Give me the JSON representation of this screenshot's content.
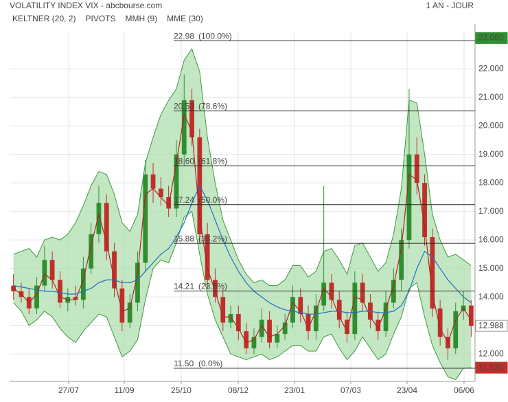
{
  "chart_data": {
    "type": "candlestick",
    "title": "VOLATILITY INDEX VIX - abcbourse.com",
    "period": "1 AN - JOUR",
    "xlim": [
      -0.5,
      59.5
    ],
    "ylim": [
      11.04,
      23.33
    ],
    "xticks": [
      {
        "value": 7.11,
        "label": "27/07"
      },
      {
        "value": 14.28,
        "label": "11/09"
      },
      {
        "value": 21.62,
        "label": "25/10"
      },
      {
        "value": 28.97,
        "label": "08/12"
      },
      {
        "value": 36.23,
        "label": "23/01"
      },
      {
        "value": 43.48,
        "label": "07/03"
      },
      {
        "value": 50.74,
        "label": "23/04"
      },
      {
        "value": 58.08,
        "label": "06/06"
      }
    ],
    "yticks": [
      {
        "value": 12,
        "label": "12.000"
      },
      {
        "value": 13,
        "label": "13.000"
      },
      {
        "value": 14,
        "label": "14.000"
      },
      {
        "value": 15,
        "label": "15.000"
      },
      {
        "value": 16,
        "label": "16.000"
      },
      {
        "value": 17,
        "label": "17.000"
      },
      {
        "value": 18,
        "label": "18.000"
      },
      {
        "value": 19,
        "label": "19.000"
      },
      {
        "value": 20,
        "label": "20.000"
      },
      {
        "value": 21,
        "label": "21.000"
      },
      {
        "value": 22,
        "label": "22.000"
      }
    ],
    "grid": true,
    "up_color": "#2f8f2f",
    "down_color": "#c0302a",
    "x": [
      0,
      1,
      2,
      3,
      4,
      5,
      6,
      7,
      8,
      9,
      10,
      11,
      12,
      13,
      14,
      15,
      16,
      17,
      18,
      19,
      20,
      21,
      22,
      23,
      24,
      25,
      26,
      27,
      28,
      29,
      30,
      31,
      32,
      33,
      34,
      35,
      36,
      37,
      38,
      39,
      40,
      41,
      42,
      43,
      44,
      45,
      46,
      47,
      48,
      49,
      50,
      51,
      52,
      53,
      54,
      55,
      56,
      57,
      58,
      59
    ],
    "opens": [
      14.4,
      14.2,
      14.0,
      13.6,
      14.4,
      15.3,
      14.6,
      13.8,
      14.0,
      13.9,
      15.0,
      16.2,
      17.3,
      15.6,
      14.3,
      13.1,
      13.8,
      15.2,
      18.3,
      17.8,
      17.5,
      17.1,
      19.0,
      20.9,
      19.6,
      16.2,
      14.6,
      14.0,
      13.1,
      13.4,
      12.8,
      12.2,
      12.6,
      13.2,
      12.4,
      12.7,
      13.1,
      14.0,
      13.4,
      12.8,
      13.7,
      14.5,
      13.9,
      13.2,
      12.7,
      14.5,
      13.8,
      13.2,
      12.8,
      13.8,
      14.6,
      16.0,
      19.0,
      18.0,
      16.1,
      13.6,
      12.6,
      12.2,
      13.5,
      13.7
    ],
    "highs": [
      14.8,
      14.5,
      14.3,
      14.7,
      15.8,
      15.6,
      14.9,
      14.3,
      14.4,
      15.4,
      16.6,
      17.9,
      17.6,
      15.9,
      14.6,
      14.1,
      15.6,
      18.8,
      18.7,
      18.2,
      17.9,
      19.5,
      21.8,
      21.3,
      19.9,
      16.6,
      15.0,
      14.3,
      13.7,
      13.7,
      13.1,
      12.9,
      13.6,
      13.5,
      13.0,
      13.4,
      14.4,
      14.3,
      13.7,
      14.1,
      17.9,
      14.8,
      14.2,
      13.5,
      14.9,
      14.8,
      14.1,
      13.5,
      14.2,
      15.0,
      16.4,
      21.3,
      19.6,
      18.3,
      16.4,
      13.9,
      12.9,
      13.8,
      14.2,
      13.9
    ],
    "lows": [
      13.9,
      13.8,
      13.4,
      13.4,
      14.2,
      14.3,
      13.6,
      13.5,
      13.7,
      13.6,
      14.8,
      15.9,
      15.3,
      14.0,
      12.8,
      12.9,
      13.5,
      14.9,
      17.3,
      17.2,
      16.8,
      16.8,
      18.6,
      19.3,
      15.9,
      14.3,
      13.8,
      12.8,
      12.9,
      12.5,
      12.0,
      12.0,
      12.4,
      12.2,
      12.2,
      12.5,
      12.9,
      13.1,
      12.5,
      12.5,
      13.5,
      13.6,
      12.9,
      12.4,
      12.5,
      13.5,
      12.9,
      12.5,
      12.6,
      13.6,
      14.2,
      15.7,
      17.6,
      15.8,
      13.3,
      12.3,
      11.8,
      12.0,
      13.2,
      12.6
    ],
    "closes": [
      14.2,
      14.0,
      13.6,
      14.4,
      15.3,
      14.6,
      13.8,
      14.0,
      13.9,
      15.0,
      16.2,
      17.3,
      15.6,
      14.3,
      13.1,
      13.8,
      15.2,
      18.3,
      17.8,
      17.5,
      17.1,
      19.0,
      20.9,
      19.6,
      16.2,
      14.6,
      14.0,
      13.1,
      13.4,
      12.8,
      12.2,
      12.6,
      13.2,
      12.4,
      12.7,
      13.1,
      14.0,
      13.4,
      12.8,
      13.7,
      14.5,
      13.9,
      13.2,
      12.7,
      14.5,
      13.8,
      13.2,
      12.8,
      13.8,
      14.6,
      16.0,
      19.0,
      18.0,
      16.1,
      13.6,
      12.6,
      12.2,
      13.5,
      13.7,
      12.99
    ],
    "keltner": {
      "name": "KELTNER (20, 2)",
      "color": "#3c9a3c",
      "fill": "#a9dca9",
      "upper": [
        15.5,
        15.6,
        15.7,
        15.4,
        16.0,
        16.1,
        16.0,
        16.2,
        16.6,
        17.2,
        17.9,
        18.4,
        18.3,
        17.6,
        16.6,
        16.3,
        16.9,
        18.7,
        19.6,
        20.4,
        20.9,
        21.3,
        22.3,
        22.7,
        21.9,
        19.6,
        18.0,
        16.7,
        16.0,
        15.3,
        14.8,
        14.5,
        14.6,
        14.4,
        14.4,
        14.6,
        15.1,
        15.1,
        14.7,
        14.9,
        15.6,
        15.7,
        15.3,
        14.8,
        15.8,
        15.9,
        15.4,
        14.9,
        15.2,
        16.2,
        17.8,
        20.9,
        20.8,
        19.0,
        16.9,
        16.0,
        15.4,
        15.5,
        15.3,
        15.1
      ],
      "lower": [
        13.8,
        13.5,
        13.0,
        13.2,
        13.5,
        13.3,
        12.9,
        12.6,
        12.4,
        12.8,
        13.1,
        13.4,
        13.3,
        12.6,
        11.9,
        12.1,
        12.5,
        13.9,
        15.0,
        15.3,
        15.2,
        15.9,
        16.8,
        17.0,
        15.5,
        14.1,
        13.2,
        12.6,
        12.0,
        11.9,
        11.8,
        11.9,
        12.0,
        11.8,
        11.9,
        12.1,
        12.3,
        12.3,
        12.1,
        12.1,
        12.6,
        12.7,
        12.2,
        11.8,
        12.1,
        12.6,
        12.2,
        11.8,
        12.0,
        12.7,
        13.3,
        14.3,
        14.5,
        13.3,
        12.3,
        11.7,
        11.2,
        11.1,
        11.5,
        11.52
      ]
    },
    "pivots": {
      "name": "PIVOTS",
      "color": "#333333",
      "levels": [
        {
          "value": 22.98,
          "pct": "(100.0%)"
        },
        {
          "value": 20.53,
          "pct": "(78.6%)"
        },
        {
          "value": 18.6,
          "label": "18.60",
          "pct": "(61.8%)"
        },
        {
          "value": 17.24,
          "pct": "(50.0%)"
        },
        {
          "value": 15.88,
          "pct": "(38.2%)"
        },
        {
          "value": 14.21,
          "pct": "(23.6%)"
        },
        {
          "value": 11.5,
          "label": "11.50",
          "pct": "(0.0%)"
        }
      ]
    },
    "mmh": {
      "name": "MMH (9)",
      "color": "#b22222",
      "values": [
        14.3,
        14.1,
        13.8,
        14.1,
        14.8,
        14.6,
        14.0,
        13.9,
        13.9,
        14.6,
        15.8,
        16.9,
        15.9,
        14.6,
        13.5,
        13.6,
        14.8,
        17.6,
        17.8,
        17.5,
        17.2,
        18.7,
        20.4,
        19.8,
        16.8,
        15.0,
        14.2,
        13.3,
        13.3,
        12.9,
        12.4,
        12.5,
        13.0,
        12.6,
        12.7,
        13.0,
        13.8,
        13.5,
        12.9,
        13.5,
        14.3,
        14.0,
        13.3,
        12.8,
        14.0,
        13.9,
        13.3,
        12.9,
        13.6,
        14.4,
        15.7,
        18.3,
        18.1,
        16.5,
        14.1,
        12.9,
        12.4,
        13.2,
        13.6,
        13.2
      ]
    },
    "mme": {
      "name": "MME (30)",
      "color": "#1f6fc4",
      "values": [
        14.4,
        14.35,
        14.3,
        14.25,
        14.2,
        14.2,
        14.15,
        14.1,
        14.1,
        14.2,
        14.3,
        14.5,
        14.6,
        14.6,
        14.5,
        14.5,
        14.6,
        14.9,
        15.2,
        15.5,
        15.7,
        16.1,
        16.6,
        17.3,
        17.9,
        17.4,
        16.7,
        16.0,
        15.4,
        14.9,
        14.5,
        14.2,
        14.0,
        13.8,
        13.65,
        13.55,
        13.5,
        13.45,
        13.4,
        13.4,
        13.45,
        13.5,
        13.5,
        13.45,
        13.45,
        13.5,
        13.5,
        13.45,
        13.45,
        13.5,
        13.7,
        14.2,
        15.0,
        15.6,
        15.4,
        15.0,
        14.6,
        14.3,
        14.0,
        13.8
      ]
    },
    "price_tags": [
      {
        "value": 23.08,
        "label": "23.080",
        "color": "#2f8f2f",
        "text_color": "#ffffff"
      },
      {
        "value": 12.988,
        "label": "12.988",
        "color": "#ffffff",
        "text_color": "#333333"
      },
      {
        "value": 11.52,
        "label": "11.520",
        "color": "#c0302a",
        "text_color": "#ffffff"
      }
    ]
  }
}
